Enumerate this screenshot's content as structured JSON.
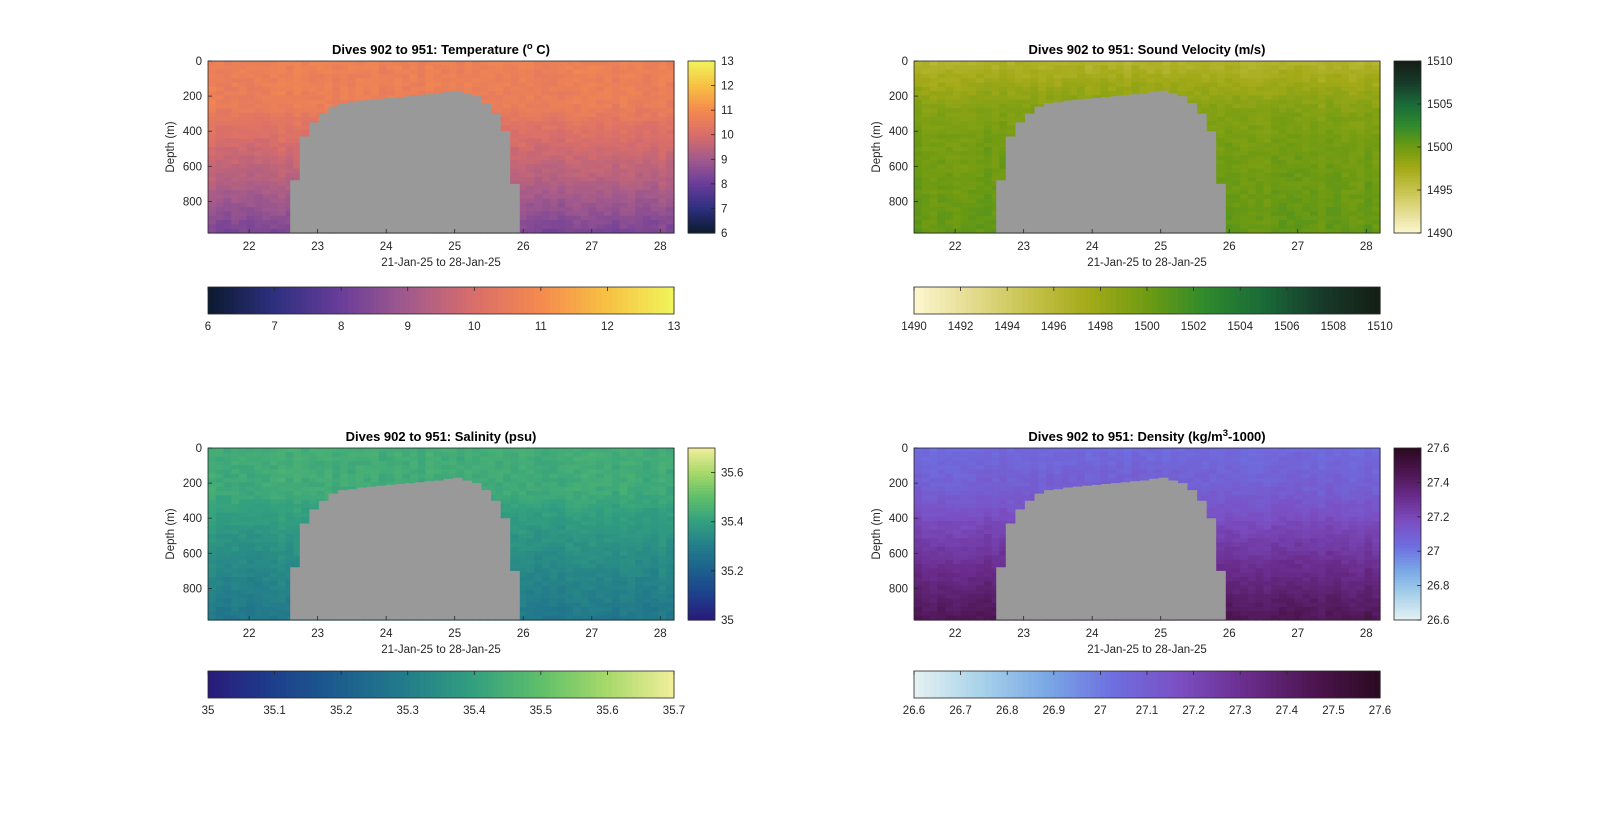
{
  "figure": {
    "background": "#ffffff",
    "data_gap_color": "#999999"
  },
  "chart_data": [
    {
      "type": "heatmap",
      "title": "Dives 902 to 951: Temperature (° C)",
      "title_parts": {
        "before": "Dives 902 to 951: Temperature (",
        "sup": "o",
        "after": " C)"
      },
      "xlabel": "21-Jan-25 to 28-Jan-25",
      "ylabel": "Depth (m)",
      "xlim": [
        21.4,
        28.2
      ],
      "ylim": [
        0,
        980
      ],
      "y_reversed": true,
      "xticks": [
        22,
        23,
        24,
        25,
        26,
        27,
        28
      ],
      "yticks": [
        0,
        200,
        400,
        600,
        800
      ],
      "colormap": [
        "#0b1a2e",
        "#2d2f80",
        "#6a3d9a",
        "#a25a8c",
        "#d96e6a",
        "#f58a4e",
        "#f7c243",
        "#f0f55b"
      ],
      "clim": [
        6,
        13
      ],
      "colorbar_ticks": [
        6,
        7,
        8,
        9,
        10,
        11,
        12,
        13
      ],
      "field_profile": {
        "depths": [
          0,
          250,
          450,
          700,
          980
        ],
        "values": [
          10.7,
          10.6,
          10.0,
          9.3,
          8.3
        ]
      },
      "gap": {
        "x_start": 22.6,
        "x_end": 25.95,
        "mask_top_depths": [
          680,
          430,
          350,
          300,
          260,
          240,
          235,
          225,
          220,
          215,
          210,
          205,
          200,
          195,
          190,
          185,
          175,
          170,
          185,
          200,
          240,
          300,
          400,
          700
        ]
      }
    },
    {
      "type": "heatmap",
      "title": "Dives 902 to 951: Sound Velocity (m/s)",
      "xlabel": "21-Jan-25 to 28-Jan-25",
      "ylabel": "Depth (m)",
      "xlim": [
        21.4,
        28.2
      ],
      "ylim": [
        0,
        980
      ],
      "y_reversed": true,
      "xticks": [
        22,
        23,
        24,
        25,
        26,
        27,
        28
      ],
      "yticks": [
        0,
        200,
        400,
        600,
        800
      ],
      "colormap": [
        "#fdf6d0",
        "#e3dc8e",
        "#c6c24c",
        "#a3aa18",
        "#6f9b12",
        "#2f8a2c",
        "#1a6a38",
        "#173a2a",
        "#141e14"
      ],
      "clim": [
        1490,
        1510
      ],
      "colorbar_ticks": [
        1490,
        1495,
        1500,
        1505,
        1510
      ],
      "colorbar_h_ticks": [
        1490,
        1492,
        1494,
        1496,
        1498,
        1500,
        1502,
        1504,
        1506,
        1508,
        1510
      ],
      "field_profile": {
        "depths": [
          0,
          100,
          300,
          500,
          980
        ],
        "values": [
          1496.5,
          1497.5,
          1499.2,
          1499.8,
          1500.5
        ]
      },
      "gap": {
        "x_start": 22.6,
        "x_end": 25.95,
        "mask_top_depths": [
          680,
          430,
          350,
          300,
          260,
          240,
          235,
          225,
          220,
          215,
          210,
          205,
          200,
          195,
          190,
          185,
          175,
          170,
          185,
          200,
          240,
          300,
          400,
          700
        ]
      }
    },
    {
      "type": "heatmap",
      "title": "Dives 902 to 951: Salinity (psu)",
      "xlabel": "21-Jan-25 to 28-Jan-25",
      "ylabel": "Depth (m)",
      "xlim": [
        21.4,
        28.2
      ],
      "ylim": [
        0,
        980
      ],
      "y_reversed": true,
      "xticks": [
        22,
        23,
        24,
        25,
        26,
        27,
        28
      ],
      "yticks": [
        0,
        200,
        400,
        600,
        800
      ],
      "colormap": [
        "#2a1a7a",
        "#1d3f8c",
        "#1c5f8e",
        "#237e8a",
        "#33a07f",
        "#5fbf6a",
        "#a8d96a",
        "#f2ef9b"
      ],
      "clim": [
        35,
        35.7
      ],
      "colorbar_ticks": [
        35,
        35.2,
        35.4,
        35.6
      ],
      "colorbar_h_ticks": [
        35,
        35.1,
        35.2,
        35.3,
        35.4,
        35.5,
        35.6,
        35.7
      ],
      "field_profile": {
        "depths": [
          0,
          250,
          450,
          700,
          980
        ],
        "values": [
          35.44,
          35.43,
          35.38,
          35.33,
          35.28
        ]
      },
      "gap": {
        "x_start": 22.6,
        "x_end": 25.95,
        "mask_top_depths": [
          680,
          430,
          350,
          300,
          260,
          240,
          235,
          225,
          220,
          215,
          210,
          205,
          200,
          195,
          190,
          185,
          175,
          170,
          185,
          200,
          240,
          300,
          400,
          700
        ]
      }
    },
    {
      "type": "heatmap",
      "title": "Dives 902 to 951: Density (kg/m³-1000)",
      "title_parts": {
        "before": "Dives 902 to 951: Density (kg/m",
        "sup": "3",
        "after": "-1000)"
      },
      "xlabel": "21-Jan-25 to 28-Jan-25",
      "ylabel": "Depth (m)",
      "xlim": [
        21.4,
        28.2
      ],
      "ylim": [
        0,
        980
      ],
      "y_reversed": true,
      "xticks": [
        22,
        23,
        24,
        25,
        26,
        27,
        28
      ],
      "yticks": [
        0,
        200,
        400,
        600,
        800
      ],
      "colormap": [
        "#e6f2f2",
        "#a9d2ea",
        "#7aa8e6",
        "#6e6ee0",
        "#7b4ec2",
        "#6a2c8c",
        "#4d1550",
        "#2a0a20"
      ],
      "clim": [
        26.6,
        27.6
      ],
      "colorbar_ticks": [
        26.6,
        26.8,
        27,
        27.2,
        27.4,
        27.6
      ],
      "colorbar_h_ticks": [
        26.6,
        26.7,
        26.8,
        26.9,
        27,
        27.1,
        27.2,
        27.3,
        27.4,
        27.5,
        27.6
      ],
      "field_profile": {
        "depths": [
          0,
          250,
          450,
          700,
          980
        ],
        "values": [
          27.05,
          27.1,
          27.2,
          27.32,
          27.45
        ]
      },
      "gap": {
        "x_start": 22.6,
        "x_end": 25.95,
        "mask_top_depths": [
          680,
          430,
          350,
          300,
          260,
          240,
          235,
          225,
          220,
          215,
          210,
          205,
          200,
          195,
          190,
          185,
          175,
          170,
          185,
          200,
          240,
          300,
          400,
          700
        ]
      }
    }
  ]
}
